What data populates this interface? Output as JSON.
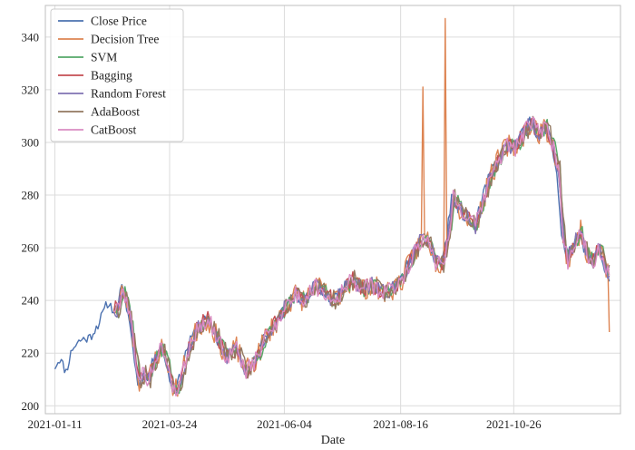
{
  "chart_data": {
    "type": "line",
    "title": "",
    "xlabel": "Date",
    "ylabel": "",
    "x_start": "2021-01-11",
    "x_end": "2021-12-25",
    "xlim": [
      "2021-01-05",
      "2022-01-01"
    ],
    "ylim": [
      197,
      352
    ],
    "x_ticks": [
      "2021-01-11",
      "2021-03-24",
      "2021-06-04",
      "2021-08-16",
      "2021-10-26"
    ],
    "y_ticks": [
      200,
      220,
      240,
      260,
      280,
      300,
      320,
      340
    ],
    "grid": true,
    "legend_position": "top-left",
    "anchors": [
      [
        "2021-01-11",
        215
      ],
      [
        "2021-01-14",
        218
      ],
      [
        "2021-01-18",
        213
      ],
      [
        "2021-01-22",
        222
      ],
      [
        "2021-01-27",
        225
      ],
      [
        "2021-02-02",
        226
      ],
      [
        "2021-02-08",
        232
      ],
      [
        "2021-02-13",
        239
      ],
      [
        "2021-02-18",
        236
      ],
      [
        "2021-02-22",
        245
      ],
      [
        "2021-02-26",
        235
      ],
      [
        "2021-03-01",
        222
      ],
      [
        "2021-03-04",
        208
      ],
      [
        "2021-03-07",
        213
      ],
      [
        "2021-03-10",
        210
      ],
      [
        "2021-03-14",
        218
      ],
      [
        "2021-03-18",
        222
      ],
      [
        "2021-03-22",
        216
      ],
      [
        "2021-03-26",
        205
      ],
      [
        "2021-03-30",
        210
      ],
      [
        "2021-04-04",
        222
      ],
      [
        "2021-04-10",
        230
      ],
      [
        "2021-04-16",
        233
      ],
      [
        "2021-04-22",
        226
      ],
      [
        "2021-04-28",
        218
      ],
      [
        "2021-05-04",
        222
      ],
      [
        "2021-05-10",
        213
      ],
      [
        "2021-05-16",
        217
      ],
      [
        "2021-05-22",
        226
      ],
      [
        "2021-05-28",
        231
      ],
      [
        "2021-06-04",
        238
      ],
      [
        "2021-06-10",
        242
      ],
      [
        "2021-06-16",
        240
      ],
      [
        "2021-06-22",
        246
      ],
      [
        "2021-06-28",
        243
      ],
      [
        "2021-07-04",
        240
      ],
      [
        "2021-07-10",
        244
      ],
      [
        "2021-07-16",
        248
      ],
      [
        "2021-07-22",
        244
      ],
      [
        "2021-07-28",
        246
      ],
      [
        "2021-08-03",
        243
      ],
      [
        "2021-08-09",
        244
      ],
      [
        "2021-08-16",
        248
      ],
      [
        "2021-08-22",
        256
      ],
      [
        "2021-08-27",
        262
      ],
      [
        "2021-09-01",
        264
      ],
      [
        "2021-09-06",
        255
      ],
      [
        "2021-09-10",
        253
      ],
      [
        "2021-09-14",
        264
      ],
      [
        "2021-09-17",
        280
      ],
      [
        "2021-09-21",
        275
      ],
      [
        "2021-09-25",
        272
      ],
      [
        "2021-10-01",
        268
      ],
      [
        "2021-10-06",
        278
      ],
      [
        "2021-10-11",
        288
      ],
      [
        "2021-10-16",
        294
      ],
      [
        "2021-10-21",
        299
      ],
      [
        "2021-10-26",
        298
      ],
      [
        "2021-10-31",
        303
      ],
      [
        "2021-11-05",
        308
      ],
      [
        "2021-11-10",
        303
      ],
      [
        "2021-11-14",
        306
      ],
      [
        "2021-11-18",
        300
      ],
      [
        "2021-11-22",
        290
      ],
      [
        "2021-11-25",
        265
      ],
      [
        "2021-11-28",
        255
      ],
      [
        "2021-12-02",
        262
      ],
      [
        "2021-12-06",
        266
      ],
      [
        "2021-12-10",
        258
      ],
      [
        "2021-12-14",
        255
      ],
      [
        "2021-12-18",
        260
      ],
      [
        "2021-12-22",
        252
      ],
      [
        "2021-12-25",
        248
      ]
    ],
    "series": [
      {
        "name": "Close Price",
        "color": "#4c72b0",
        "start": "2021-01-11",
        "lag_days": 0,
        "noise_amp": 2.0,
        "seed": 11
      },
      {
        "name": "Decision Tree",
        "color": "#dd8452",
        "start": "2021-02-17",
        "lag_days": 1,
        "noise_amp": 4.5,
        "seed": 23,
        "spikes": [
          [
            "2021-08-30",
            321
          ],
          [
            "2021-09-13",
            347
          ],
          [
            "2021-12-25",
            228
          ]
        ]
      },
      {
        "name": "SVM",
        "color": "#55a868",
        "start": "2021-02-17",
        "lag_days": 2,
        "noise_amp": 2.8,
        "seed": 37
      },
      {
        "name": "Bagging",
        "color": "#c44e52",
        "start": "2021-02-17",
        "lag_days": 1,
        "noise_amp": 3.2,
        "seed": 41
      },
      {
        "name": "Random Forest",
        "color": "#8172b3",
        "start": "2021-02-17",
        "lag_days": 1,
        "noise_amp": 3.0,
        "seed": 53
      },
      {
        "name": "AdaBoost",
        "color": "#937860",
        "start": "2021-02-17",
        "lag_days": 2,
        "noise_amp": 3.5,
        "seed": 67
      },
      {
        "name": "CatBoost",
        "color": "#da8bc3",
        "start": "2021-02-17",
        "lag_days": 1,
        "noise_amp": 3.4,
        "seed": 79
      }
    ]
  }
}
